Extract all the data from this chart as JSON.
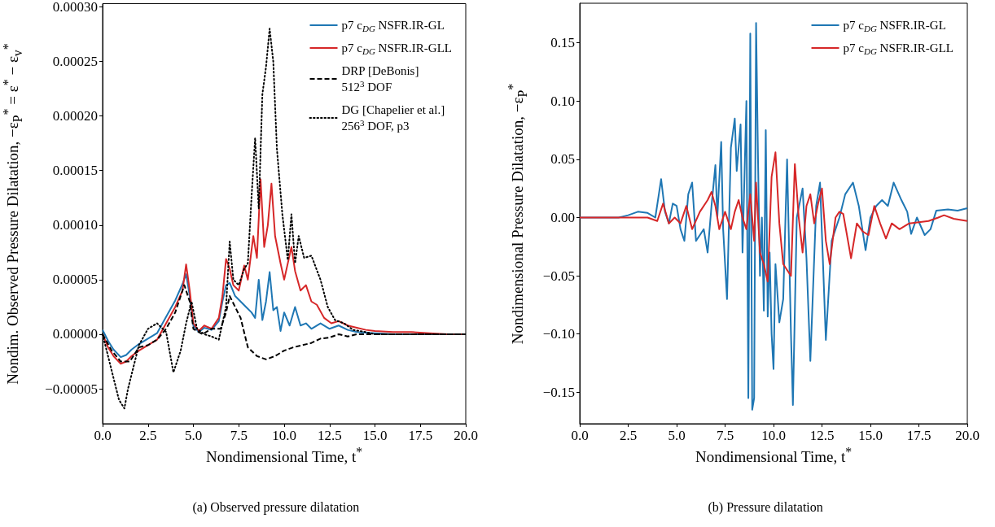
{
  "chart_data": [
    {
      "type": "line",
      "xlabel": "Nondimensional Time, t$^{*}$",
      "ylabel": "Nondim. Observed Pressure Dilatation, −ε$_{P}$$^{*}$ = ε$^{*}$ − ε$_{v}$$^{*}$",
      "annotations": [
        "(a) Observed pressure dilatation"
      ],
      "legend": "top right",
      "marker": "none",
      "xlim": [
        0,
        20
      ],
      "ylim": [
        -8.2e-05,
        0.000303
      ],
      "xticks": [
        {
          "value": 0,
          "label": "0.0"
        },
        {
          "value": 2.5,
          "label": "2.5"
        },
        {
          "value": 5,
          "label": "5.0"
        },
        {
          "value": 7.5,
          "label": "7.5"
        },
        {
          "value": 10,
          "label": "10.0"
        },
        {
          "value": 12.5,
          "label": "12.5"
        },
        {
          "value": 15,
          "label": "15.0"
        },
        {
          "value": 17.5,
          "label": "17.5"
        },
        {
          "value": 20,
          "label": "20.0"
        }
      ],
      "yticks": [
        {
          "value": -5e-05,
          "label": "−0.00005"
        },
        {
          "value": 0,
          "label": "0.00000"
        },
        {
          "value": 5e-05,
          "label": "0.00005"
        },
        {
          "value": 0.0001,
          "label": "0.00010"
        },
        {
          "value": 0.00015,
          "label": "0.00015"
        },
        {
          "value": 0.0002,
          "label": "0.00020"
        },
        {
          "value": 0.00025,
          "label": "0.00025"
        },
        {
          "value": 0.0003,
          "label": "0.00030"
        }
      ],
      "series": [
        {
          "name": "p7 c$_{DG}$ NSFR.IR-GL",
          "color": "#1f77b4",
          "line_style": "solid",
          "x": [
            0,
            0.3,
            0.6,
            1.0,
            1.3,
            1.6,
            2.0,
            2.5,
            3.0,
            3.5,
            4.0,
            4.4,
            4.6,
            4.8,
            5.0,
            5.3,
            5.6,
            6.0,
            6.4,
            6.6,
            6.8,
            7.0,
            7.3,
            7.6,
            7.9,
            8.2,
            8.4,
            8.6,
            8.8,
            9.0,
            9.2,
            9.4,
            9.6,
            9.8,
            10.0,
            10.3,
            10.6,
            10.9,
            11.2,
            11.5,
            12.0,
            12.5,
            13.0,
            13.5,
            14.0,
            15.0,
            16.0,
            20.0
          ],
          "values": [
            4e-06,
            -6e-06,
            -1.4e-05,
            -2.1e-05,
            -1.9e-05,
            -1.4e-05,
            -9e-06,
            -4e-06,
            1e-06,
            1.6e-05,
            3.1e-05,
            4.6e-05,
            5.5e-05,
            3.5e-05,
            8e-06,
            2e-06,
            6e-06,
            4e-06,
            1.2e-05,
            3e-05,
            4.5e-05,
            4.7e-05,
            3.5e-05,
            3e-05,
            2.5e-05,
            2e-05,
            1.5e-05,
            5e-05,
            1.3e-05,
            3e-05,
            5.7e-05,
            2.2e-05,
            2.5e-05,
            3e-06,
            2e-05,
            8e-06,
            2.5e-05,
            8e-06,
            1e-05,
            5e-06,
            1e-05,
            5e-06,
            8e-06,
            4e-06,
            2e-06,
            1e-06,
            0,
            0
          ]
        },
        {
          "name": "p7 c$_{DG}$ NSFR.IR-GLL",
          "color": "#d62728",
          "line_style": "solid",
          "x": [
            0,
            0.3,
            0.6,
            1.0,
            1.3,
            1.6,
            2.0,
            2.5,
            3.0,
            3.5,
            4.0,
            4.4,
            4.6,
            4.8,
            5.0,
            5.3,
            5.6,
            6.0,
            6.4,
            6.6,
            6.8,
            7.0,
            7.2,
            7.5,
            7.8,
            8.0,
            8.3,
            8.5,
            8.7,
            8.9,
            9.1,
            9.3,
            9.5,
            9.8,
            10.0,
            10.4,
            10.6,
            10.9,
            11.2,
            11.5,
            11.8,
            12.2,
            12.6,
            13.0,
            13.5,
            14.0,
            14.5,
            15.0,
            16.0,
            17.0,
            18.0,
            19.0,
            20.0
          ],
          "values": [
            0,
            -1.2e-05,
            -2e-05,
            -2.7e-05,
            -2.5e-05,
            -2e-05,
            -1.5e-05,
            -1e-05,
            -5e-06,
            1e-05,
            2.5e-05,
            4e-05,
            6.4e-05,
            4e-05,
            1e-05,
            3e-06,
            8e-06,
            5e-06,
            1.5e-05,
            3.5e-05,
            6.9e-05,
            6e-05,
            4.5e-05,
            4e-05,
            6.3e-05,
            5e-05,
            9e-05,
            7e-05,
            0.000142,
            8e-05,
            0.0001,
            0.000138,
            9e-05,
            6.5e-05,
            5e-05,
            8e-05,
            5.8e-05,
            4e-05,
            4.5e-05,
            3e-05,
            2.7e-05,
            1.5e-05,
            1e-05,
            1.2e-05,
            8e-06,
            6e-06,
            4e-06,
            3e-06,
            2e-06,
            2e-06,
            1e-06,
            0,
            0
          ]
        },
        {
          "name": "DRP [DeBonis]\n512$^{3}$ DOF",
          "color": "#000000",
          "line_style": "dashed",
          "x": [
            0,
            0.5,
            1.0,
            1.5,
            2.0,
            2.5,
            3.0,
            3.5,
            4.0,
            4.5,
            4.8,
            5.0,
            5.5,
            6.0,
            6.5,
            6.8,
            7.0,
            7.3,
            7.6,
            8.0,
            8.5,
            9.0,
            9.5,
            10.0,
            10.5,
            11.0,
            11.5,
            12.0,
            12.5,
            13.0,
            13.5,
            14.0,
            15.0,
            20.0
          ],
          "values": [
            0,
            -1.5e-05,
            -2.5e-05,
            -2.5e-05,
            -1.2e-05,
            -1e-05,
            -5e-06,
            5e-06,
            2e-05,
            4.5e-05,
            3e-05,
            5e-06,
            0,
            5e-06,
            5e-06,
            2e-05,
            3.5e-05,
            2.5e-05,
            1.5e-05,
            -1.2e-05,
            -2e-05,
            -2.3e-05,
            -2e-05,
            -1.5e-05,
            -1.2e-05,
            -1e-05,
            -8e-06,
            -4e-06,
            -3e-06,
            0,
            -2e-06,
            0,
            0,
            0
          ]
        },
        {
          "name": "DG [Chapelier et al.]\n256$^{3}$ DOF, p3",
          "color": "#000000",
          "line_style": "dotted",
          "x": [
            0,
            0.3,
            0.6,
            0.9,
            1.2,
            1.4,
            1.7,
            2.0,
            2.5,
            3.0,
            3.5,
            3.9,
            4.3,
            4.6,
            4.9,
            5.2,
            5.6,
            6.0,
            6.4,
            6.8,
            7.0,
            7.2,
            7.5,
            7.8,
            8.0,
            8.2,
            8.4,
            8.6,
            8.8,
            9.0,
            9.2,
            9.4,
            9.6,
            9.9,
            10.2,
            10.4,
            10.6,
            10.8,
            11.1,
            11.5,
            12.0,
            12.4,
            12.8,
            13.3,
            13.8,
            14.5,
            15.0,
            20.0
          ],
          "values": [
            0,
            -2e-05,
            -4e-05,
            -6e-05,
            -6.8e-05,
            -5e-05,
            -3e-05,
            -1e-05,
            5e-06,
            1e-05,
            2e-06,
            -3.5e-05,
            -1.5e-05,
            1e-05,
            3e-05,
            5e-06,
            0,
            -2e-06,
            -5e-06,
            2.5e-05,
            8.5e-05,
            5e-05,
            4.5e-05,
            6e-05,
            6.5e-05,
            0.000125,
            0.00018,
            0.000115,
            0.00022,
            0.000245,
            0.00028,
            0.00025,
            0.00017,
            0.00011,
            6.8e-05,
            0.00011,
            6.5e-05,
            9e-05,
            7e-05,
            7.2e-05,
            5e-05,
            2.5e-05,
            1.3e-05,
            1e-05,
            4e-06,
            2e-06,
            0,
            0
          ]
        }
      ]
    },
    {
      "type": "line",
      "xlabel": "Nondimensional Time, t$^{*}$",
      "ylabel": "Nondimensional Pressure Dilatation, −ε$_{P}$$^{*}$",
      "annotations": [
        "(b) Pressure dilatation"
      ],
      "legend": "top right",
      "marker": "none",
      "xlim": [
        0,
        20
      ],
      "ylim": [
        -0.177,
        0.184
      ],
      "xticks": [
        {
          "value": 0,
          "label": "0.0"
        },
        {
          "value": 2.5,
          "label": "2.5"
        },
        {
          "value": 5,
          "label": "5.0"
        },
        {
          "value": 7.5,
          "label": "7.5"
        },
        {
          "value": 10,
          "label": "10.0"
        },
        {
          "value": 12.5,
          "label": "12.5"
        },
        {
          "value": 15,
          "label": "15.0"
        },
        {
          "value": 17.5,
          "label": "17.5"
        },
        {
          "value": 20,
          "label": "20.0"
        }
      ],
      "yticks": [
        {
          "value": -0.15,
          "label": "−0.15"
        },
        {
          "value": -0.1,
          "label": "−0.10"
        },
        {
          "value": -0.05,
          "label": "−0.05"
        },
        {
          "value": 0,
          "label": "0.00"
        },
        {
          "value": 0.05,
          "label": "0.05"
        },
        {
          "value": 0.1,
          "label": "0.10"
        },
        {
          "value": 0.15,
          "label": "0.15"
        }
      ],
      "series": [
        {
          "name": "p7 c$_{DG}$ NSFR.IR-GL",
          "color": "#1f77b4",
          "line_style": "solid",
          "x": [
            0,
            2.0,
            2.5,
            3.0,
            3.5,
            3.9,
            4.2,
            4.4,
            4.6,
            4.8,
            5.0,
            5.2,
            5.4,
            5.6,
            5.8,
            6.0,
            6.2,
            6.4,
            6.6,
            6.8,
            7.0,
            7.1,
            7.3,
            7.4,
            7.6,
            7.8,
            8.0,
            8.1,
            8.3,
            8.4,
            8.6,
            8.7,
            8.8,
            8.9,
            9.0,
            9.1,
            9.2,
            9.3,
            9.4,
            9.5,
            9.6,
            9.7,
            9.8,
            9.9,
            10.0,
            10.1,
            10.3,
            10.5,
            10.7,
            10.9,
            11.0,
            11.2,
            11.5,
            11.7,
            11.9,
            12.2,
            12.4,
            12.7,
            13.0,
            13.4,
            13.7,
            14.1,
            14.4,
            14.75,
            15.0,
            15.3,
            15.6,
            15.9,
            16.2,
            16.6,
            16.9,
            17.1,
            17.4,
            17.8,
            18.1,
            18.4,
            19.0,
            19.5,
            20.0
          ],
          "values": [
            0,
            0,
            0.002,
            0.005,
            0.004,
            0,
            0.033,
            0.005,
            -0.005,
            0.012,
            0.01,
            -0.01,
            -0.02,
            0.02,
            0.03,
            -0.02,
            -0.015,
            -0.01,
            -0.03,
            0.01,
            0.045,
            0,
            0.065,
            -0.01,
            -0.07,
            0.06,
            0.085,
            0.04,
            0.08,
            -0.03,
            0.1,
            -0.155,
            0.158,
            -0.165,
            -0.155,
            0.167,
            0.05,
            -0.05,
            0,
            -0.08,
            0.075,
            -0.085,
            -0.03,
            -0.1,
            -0.13,
            -0.04,
            -0.09,
            -0.07,
            0.05,
            -0.1,
            -0.161,
            0,
            0.025,
            -0.035,
            -0.123,
            0.01,
            0.03,
            -0.105,
            -0.02,
            0,
            0.02,
            0.03,
            0.01,
            -0.028,
            0,
            0.01,
            0.015,
            0.01,
            0.03,
            0.015,
            0.005,
            -0.014,
            0,
            -0.015,
            -0.01,
            0.006,
            0.007,
            0.006,
            0.008
          ]
        },
        {
          "name": "p7 c$_{DG}$ NSFR.IR-GLL",
          "color": "#d62728",
          "line_style": "solid",
          "x": [
            0,
            3.5,
            4.0,
            4.3,
            4.6,
            4.9,
            5.2,
            5.5,
            5.8,
            6.2,
            6.6,
            6.8,
            7.0,
            7.2,
            7.5,
            7.8,
            8.0,
            8.2,
            8.4,
            8.6,
            8.8,
            9.0,
            9.1,
            9.3,
            9.5,
            9.7,
            9.9,
            10.1,
            10.3,
            10.5,
            10.7,
            10.9,
            11.1,
            11.3,
            11.5,
            11.7,
            11.9,
            12.1,
            12.3,
            12.5,
            12.7,
            12.9,
            13.2,
            13.4,
            13.6,
            14.0,
            14.3,
            14.6,
            14.9,
            15.2,
            15.5,
            15.8,
            16.1,
            16.5,
            17.0,
            17.5,
            18.0,
            18.5,
            18.8,
            19.3,
            20.0
          ],
          "values": [
            0,
            0,
            -0.003,
            0.012,
            -0.005,
            0,
            -0.005,
            0.01,
            -0.01,
            0.005,
            0.015,
            0.022,
            0.01,
            -0.01,
            0.005,
            -0.01,
            0.005,
            0.015,
            0,
            -0.01,
            0.02,
            -0.02,
            0.03,
            -0.03,
            -0.04,
            -0.055,
            0.035,
            0.056,
            -0.005,
            -0.04,
            -0.045,
            -0.05,
            0.046,
            0,
            -0.03,
            0.01,
            0.02,
            -0.005,
            0.012,
            0.025,
            -0.02,
            -0.04,
            0,
            0.005,
            0.003,
            -0.035,
            -0.005,
            -0.012,
            -0.015,
            0.01,
            -0.005,
            -0.018,
            -0.005,
            -0.01,
            -0.005,
            -0.004,
            -0.003,
            0,
            0.002,
            -0.001,
            -0.003
          ]
        }
      ]
    }
  ]
}
